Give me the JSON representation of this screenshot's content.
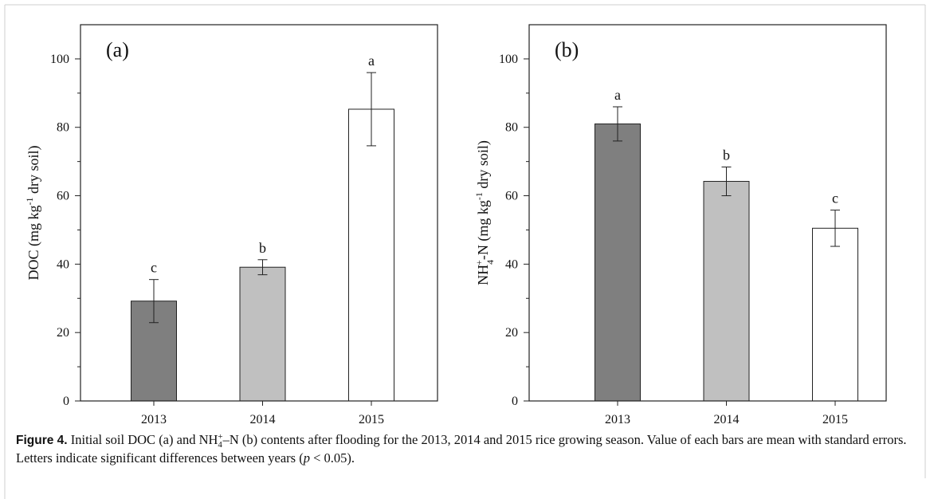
{
  "chart_data": [
    {
      "type": "bar",
      "title": "(a)",
      "ylabel": [
        "DOC (mg kg",
        "-1",
        " dry soil)"
      ],
      "categories": [
        "2013",
        "2014",
        "2015"
      ],
      "values": [
        29.2,
        39.1,
        85.3
      ],
      "errors": [
        6.3,
        2.2,
        10.7
      ],
      "letters": [
        "c",
        "b",
        "a"
      ],
      "colors": [
        "#7f7f7f",
        "#c0c0c0",
        "#ffffff"
      ],
      "ylim": [
        0,
        110
      ],
      "yticks": [
        0,
        20,
        40,
        60,
        80,
        100
      ],
      "minor_yticks": [
        10,
        30,
        50,
        70,
        90
      ]
    },
    {
      "type": "bar",
      "title": "(b)",
      "ylabel": [
        "NH",
        "4",
        "+",
        "-N (mg kg",
        "-1",
        " dry soil)"
      ],
      "categories": [
        "2013",
        "2014",
        "2015"
      ],
      "values": [
        81,
        64.2,
        50.5
      ],
      "errors": [
        5,
        4.2,
        5.3
      ],
      "letters": [
        "a",
        "b",
        "c"
      ],
      "colors": [
        "#7f7f7f",
        "#c0c0c0",
        "#ffffff"
      ],
      "ylim": [
        0,
        110
      ],
      "yticks": [
        0,
        20,
        40,
        60,
        80,
        100
      ],
      "minor_yticks": [
        10,
        30,
        50,
        70,
        90
      ]
    }
  ],
  "caption": {
    "label": "Figure 4.",
    "parts": [
      "Initial soil DOC (a) and NH",
      "4",
      "+",
      "–N (b) contents after flooding for the 2013, 2014 and 2015 rice growing season. Value of each bars are mean with standard errors. Letters indicate significant differences between years (",
      "p",
      " < 0.05)."
    ]
  }
}
